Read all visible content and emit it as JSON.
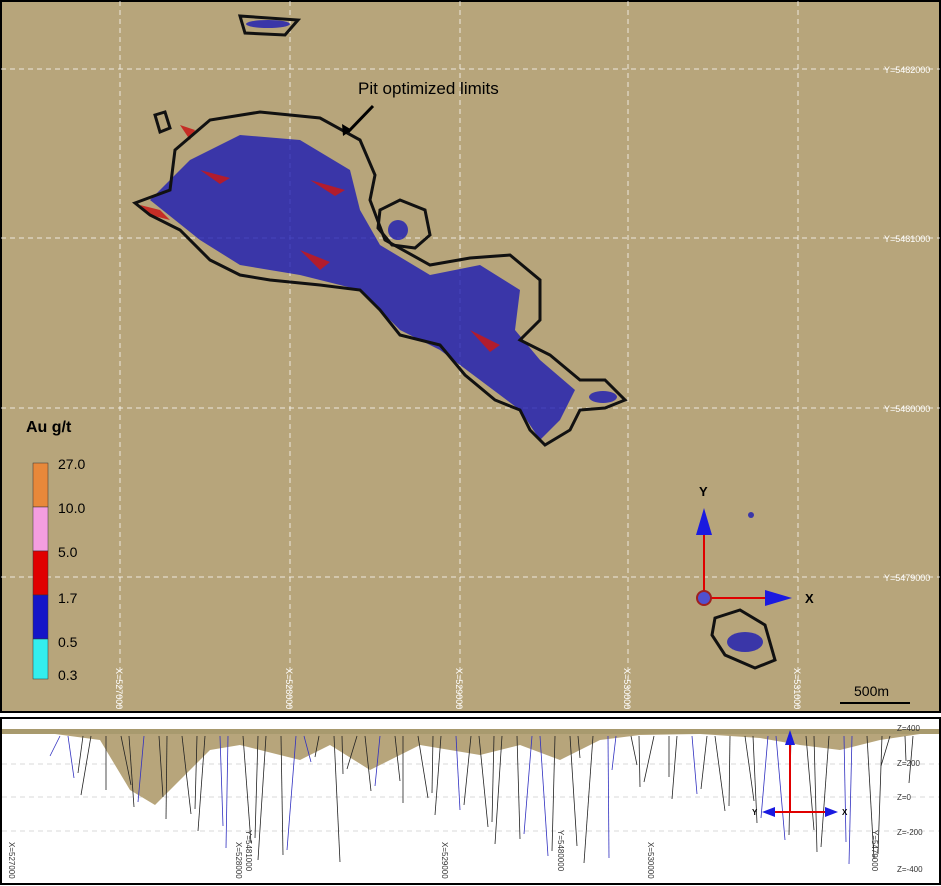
{
  "annotation": "Pit optimized limits",
  "grid": {
    "y_labels": [
      "Y=5482000",
      "Y=5481000",
      "Y=5480000",
      "Y=5479000"
    ],
    "x_labels": [
      "X=527000",
      "X=528000",
      "X=529000",
      "X=530000",
      "X=531000"
    ]
  },
  "scale_bar": "500m",
  "legend": {
    "title": "Au g/t",
    "labels": [
      "27.0",
      "10.0",
      "5.0",
      "1.7",
      "0.5",
      "0.3"
    ]
  },
  "axes": {
    "y": "Y",
    "x": "X"
  },
  "section": {
    "z_labels": [
      "Z=400",
      "Z=200",
      "Z=0",
      "Z=-200",
      "Z=-400"
    ],
    "x_labels": [
      "X=527000",
      "X=528000",
      "Y=5481000",
      "X=529000",
      "Y=5480000",
      "X=530000",
      "Y=5479000"
    ],
    "axes": {
      "y": "Y",
      "x": "X"
    }
  }
}
